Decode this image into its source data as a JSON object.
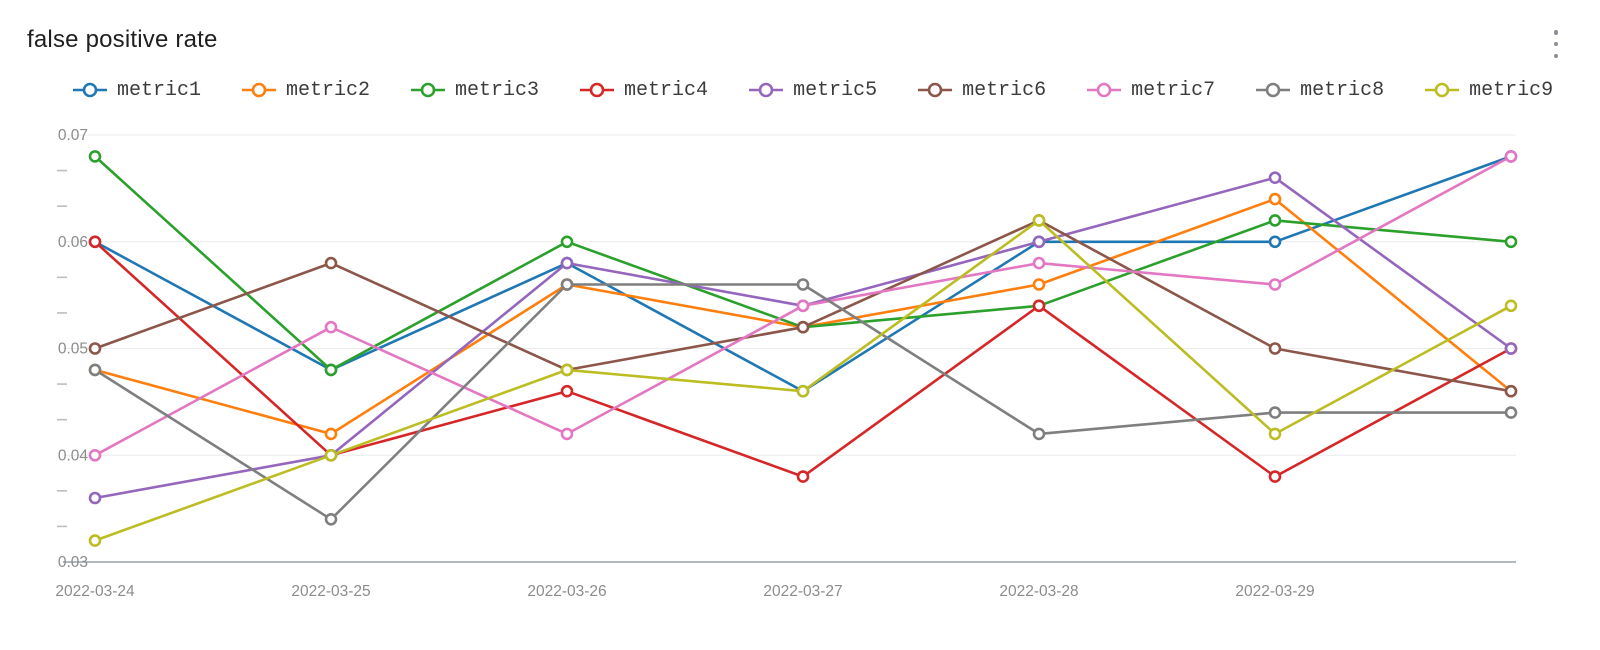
{
  "header": {
    "title": "false positive rate"
  },
  "menu": {
    "icon": "kebab-vertical-menu"
  },
  "chart_data": {
    "type": "line",
    "title": "false positive rate",
    "x_count": 7,
    "x_tick_labels": [
      "2022-03-24",
      "2022-03-25",
      "2022-03-26",
      "2022-03-27",
      "2022-03-28",
      "2022-03-29"
    ],
    "ylim": [
      0.03,
      0.07
    ],
    "yticks": [
      0.03,
      0.04,
      0.05,
      0.06,
      0.07
    ],
    "ytick_labels": [
      "0.03",
      "0.04",
      "0.05",
      "0.06",
      "0.07"
    ],
    "grid": "horizontal",
    "legend_position": "top",
    "marker": "hollow-circle",
    "axis_label_color": "#8c8c8c",
    "gridline_color": "#ececec",
    "axis_line_color": "#9aa0a6",
    "series": [
      {
        "name": "metric1",
        "color": "#1f77b4",
        "values": [
          0.06,
          0.048,
          0.058,
          0.046,
          0.06,
          0.06,
          0.068
        ]
      },
      {
        "name": "metric2",
        "color": "#ff7f0e",
        "values": [
          0.048,
          0.042,
          0.056,
          0.052,
          0.056,
          0.064,
          0.046
        ]
      },
      {
        "name": "metric3",
        "color": "#2ca02c",
        "values": [
          0.068,
          0.048,
          0.06,
          0.052,
          0.054,
          0.062,
          0.06
        ]
      },
      {
        "name": "metric4",
        "color": "#d62728",
        "values": [
          0.06,
          0.04,
          0.046,
          0.038,
          0.054,
          0.038,
          0.05
        ]
      },
      {
        "name": "metric5",
        "color": "#9467bd",
        "values": [
          0.036,
          0.04,
          0.058,
          0.054,
          0.06,
          0.066,
          0.05
        ]
      },
      {
        "name": "metric6",
        "color": "#8c564b",
        "values": [
          0.05,
          0.058,
          0.048,
          0.052,
          0.062,
          0.05,
          0.046
        ]
      },
      {
        "name": "metric7",
        "color": "#e377c2",
        "values": [
          0.04,
          0.052,
          0.042,
          0.054,
          0.058,
          0.056,
          0.068
        ]
      },
      {
        "name": "metric8",
        "color": "#7f7f7f",
        "values": [
          0.048,
          0.034,
          0.056,
          0.056,
          0.042,
          0.044,
          0.044
        ]
      },
      {
        "name": "metric9",
        "color": "#bcbd22",
        "values": [
          0.032,
          0.04,
          0.048,
          0.046,
          0.062,
          0.042,
          0.054
        ]
      }
    ]
  }
}
